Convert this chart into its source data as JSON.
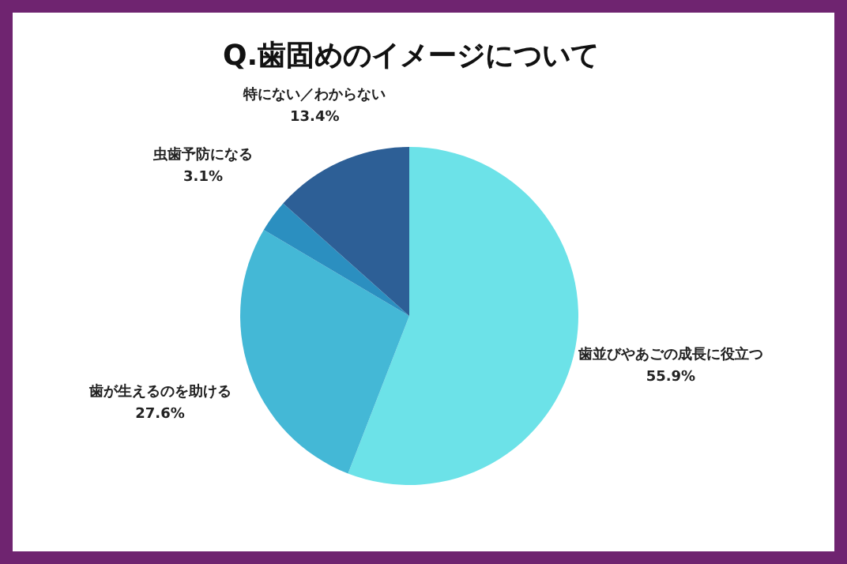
{
  "chart_data": {
    "type": "pie",
    "title": "Q.歯固めのイメージについて",
    "categories": [
      "歯並びやあごの成長に役立つ",
      "歯が生えるのを助ける",
      "虫歯予防になる",
      "特にない／わからない"
    ],
    "values": [
      55.9,
      27.6,
      3.1,
      13.4
    ],
    "value_labels": [
      "55.9%",
      "27.6%",
      "3.1%",
      "13.4%"
    ],
    "colors": [
      "#6ce2e8",
      "#44b8d6",
      "#2b8fc0",
      "#2d5f96"
    ]
  }
}
